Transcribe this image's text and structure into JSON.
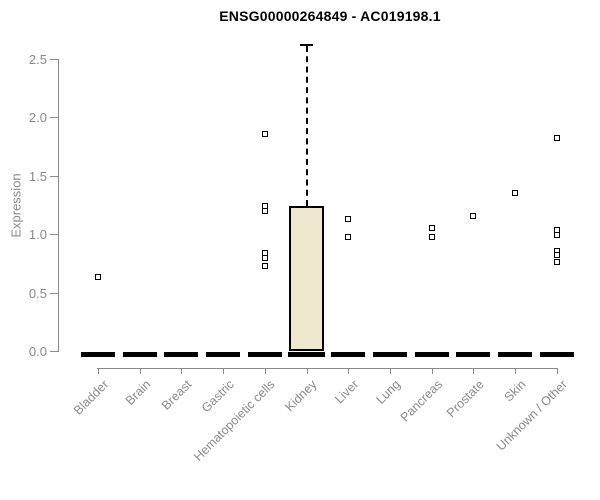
{
  "chart_data": {
    "type": "boxplot",
    "title": "ENSG00000264849 - AC019198.1",
    "xlabel": "",
    "ylabel": "Expression",
    "yticks": [
      0.0,
      0.5,
      1.0,
      1.5,
      2.0,
      2.5
    ],
    "ylim": [
      0,
      2.65
    ],
    "grid": false,
    "legend": "none",
    "categories": [
      "Bladder",
      "Brain",
      "Breast",
      "Gastric",
      "Hematopoietic cells",
      "Kidney",
      "Liver",
      "Lung",
      "Pancreas",
      "Prostate",
      "Skin",
      "Unknown / Other"
    ],
    "boxes": [
      {
        "category": "Bladder",
        "q1": 0,
        "median": 0,
        "q3": 0,
        "whisker_low": 0,
        "whisker_high": 0
      },
      {
        "category": "Brain",
        "q1": 0,
        "median": 0,
        "q3": 0,
        "whisker_low": 0,
        "whisker_high": 0
      },
      {
        "category": "Breast",
        "q1": 0,
        "median": 0,
        "q3": 0,
        "whisker_low": 0,
        "whisker_high": 0
      },
      {
        "category": "Gastric",
        "q1": 0,
        "median": 0,
        "q3": 0,
        "whisker_low": 0,
        "whisker_high": 0
      },
      {
        "category": "Hematopoietic cells",
        "q1": 0,
        "median": 0,
        "q3": 0,
        "whisker_low": 0,
        "whisker_high": 0
      },
      {
        "category": "Kidney",
        "q1": 0,
        "median": 0,
        "q3": 1.24,
        "whisker_low": 0,
        "whisker_high": 2.63
      },
      {
        "category": "Liver",
        "q1": 0,
        "median": 0,
        "q3": 0,
        "whisker_low": 0,
        "whisker_high": 0
      },
      {
        "category": "Lung",
        "q1": 0,
        "median": 0,
        "q3": 0,
        "whisker_low": 0,
        "whisker_high": 0
      },
      {
        "category": "Pancreas",
        "q1": 0,
        "median": 0,
        "q3": 0,
        "whisker_low": 0,
        "whisker_high": 0
      },
      {
        "category": "Prostate",
        "q1": 0,
        "median": 0,
        "q3": 0,
        "whisker_low": 0,
        "whisker_high": 0
      },
      {
        "category": "Skin",
        "q1": 0,
        "median": 0,
        "q3": 0,
        "whisker_low": 0,
        "whisker_high": 0
      },
      {
        "category": "Unknown / Other",
        "q1": 0,
        "median": 0,
        "q3": 0,
        "whisker_low": 0,
        "whisker_high": 0
      }
    ],
    "outliers": [
      {
        "category": "Bladder",
        "values": [
          0.63
        ]
      },
      {
        "category": "Hematopoietic cells",
        "values": [
          1.86,
          1.24,
          1.2,
          0.84,
          0.8,
          0.73
        ]
      },
      {
        "category": "Liver",
        "values": [
          1.13,
          0.98
        ]
      },
      {
        "category": "Pancreas",
        "values": [
          1.05,
          0.98
        ]
      },
      {
        "category": "Prostate",
        "values": [
          1.16
        ]
      },
      {
        "category": "Skin",
        "values": [
          1.35
        ]
      },
      {
        "category": "Unknown / Other",
        "values": [
          1.82,
          1.04,
          0.99,
          0.86,
          0.82,
          0.76
        ]
      }
    ],
    "colors": {
      "box_fill": "#EDE8CE",
      "box_border": "#000000",
      "axis": "#8a8a8a",
      "tick_text": "#8a8a8a",
      "title_text": "#000000",
      "background": "#ffffff"
    }
  }
}
